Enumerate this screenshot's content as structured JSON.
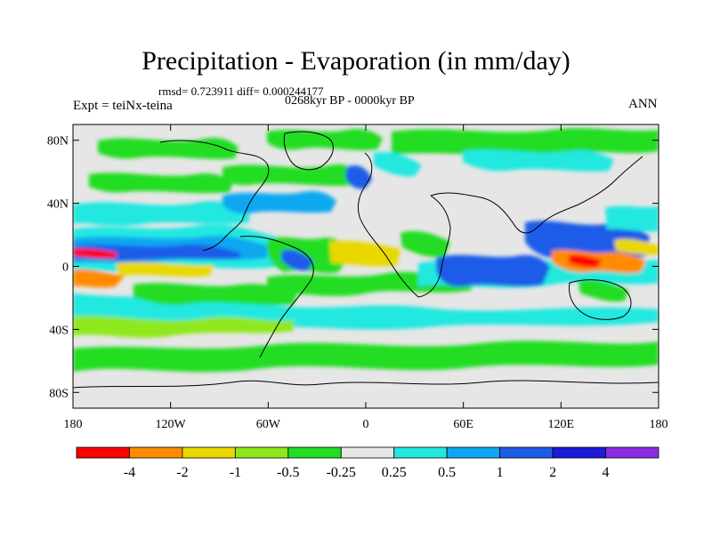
{
  "title": "Precipitation - Evaporation (in mm/day)",
  "stats": "rmsd= 0.723911 diff= 0.000244177",
  "subtitle": "0268kyr BP - 0000kyr BP",
  "experiment": "Expt = teiNx-teina",
  "season": "ANN",
  "map": {
    "projection": "cylindrical-equidistant",
    "lat_ticks": [
      "80N",
      "40N",
      "0",
      "40S",
      "80S"
    ],
    "lat_values": [
      80,
      40,
      0,
      -40,
      -80
    ],
    "lon_ticks": [
      "180",
      "120W",
      "60W",
      "0",
      "60E",
      "120E",
      "180"
    ],
    "lon_values": [
      -180,
      -120,
      -60,
      0,
      60,
      120,
      180
    ],
    "lat_range": [
      -90,
      90
    ],
    "lon_range": [
      -180,
      180
    ]
  },
  "colorbar": {
    "labels": [
      "-4",
      "-2",
      "-1",
      "-0.5",
      "-0.25",
      "0.25",
      "0.5",
      "1",
      "2",
      "4"
    ],
    "colors": [
      "#ff0000",
      "#ff8c00",
      "#e8d800",
      "#8fe81c",
      "#22dd22",
      "#e6e6e6",
      "#22e8e0",
      "#0aa8f0",
      "#1e5ce8",
      "#1a1ad8",
      "#8a2be2"
    ]
  }
}
